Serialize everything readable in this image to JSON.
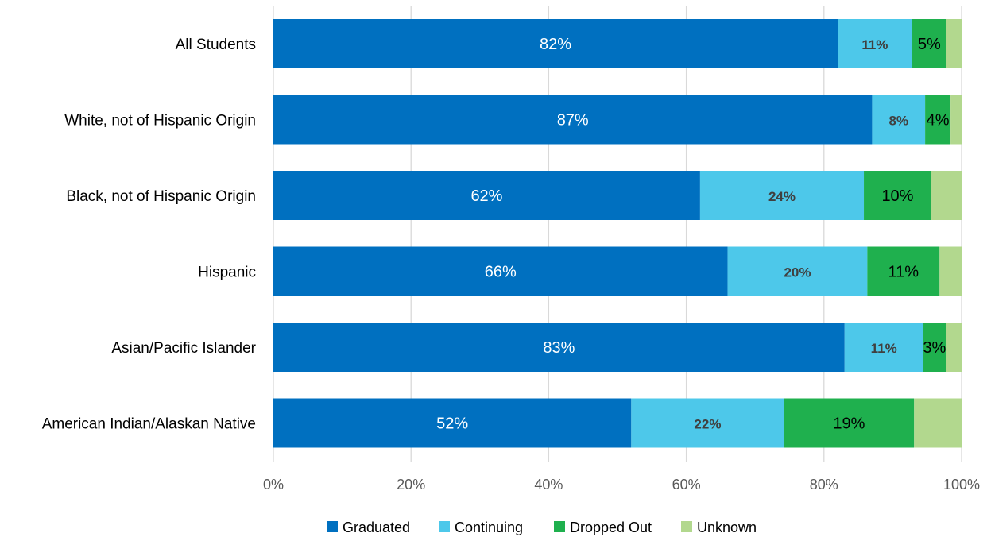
{
  "chart_data": {
    "type": "bar",
    "orientation": "horizontal",
    "stacked": true,
    "categories": [
      "All Students",
      "White, not of Hispanic Origin",
      "Black, not of Hispanic Origin",
      "Hispanic",
      "Asian/Pacific Islander",
      "American Indian/Alaskan Native"
    ],
    "series": [
      {
        "name": "Graduated",
        "color": "#0070c0",
        "label_color": "#ffffff",
        "label_bold": false,
        "values": [
          82,
          87,
          62,
          66,
          83,
          52
        ],
        "labels": [
          "82%",
          "87%",
          "62%",
          "66%",
          "83%",
          "52%"
        ]
      },
      {
        "name": "Continuing",
        "color": "#4dc8ea",
        "label_color": "#404040",
        "label_bold": true,
        "values": [
          10.8,
          7.7,
          23.8,
          20.3,
          11.4,
          22.2
        ],
        "labels": [
          "11%",
          "8%",
          "24%",
          "20%",
          "11%",
          "22%"
        ]
      },
      {
        "name": "Dropped Out",
        "color": "#1fb04e",
        "label_color": "#000000",
        "label_bold": false,
        "values": [
          5,
          3.7,
          9.8,
          10.5,
          3.3,
          18.9
        ],
        "labels": [
          "5%",
          "4%",
          "10%",
          "11%",
          "3%",
          "19%"
        ]
      },
      {
        "name": "Unknown",
        "color": "#b2d88e",
        "label_color": "#000000",
        "label_bold": false,
        "values": [
          2.2,
          1.6,
          4.4,
          3.2,
          2.3,
          6.9
        ],
        "labels": [
          "",
          "",
          "",
          "",
          "",
          ""
        ]
      }
    ],
    "xlim": [
      0,
      100
    ],
    "xticks": [
      0,
      20,
      40,
      60,
      80,
      100
    ],
    "xtick_labels": [
      "0%",
      "20%",
      "40%",
      "60%",
      "80%",
      "100%"
    ],
    "grid": true,
    "legend": "bottom",
    "title": "",
    "xlabel": "",
    "ylabel": ""
  }
}
